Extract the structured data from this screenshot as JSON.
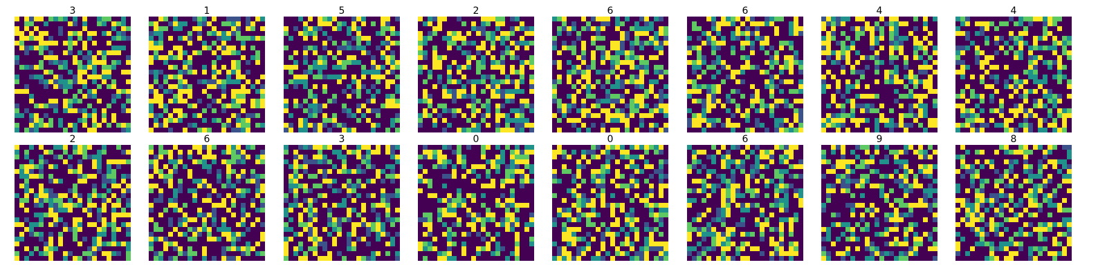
{
  "chart_data": {
    "type": "heatmap",
    "layout": {
      "rows": 2,
      "cols": 8
    },
    "image_shape": [
      24,
      24
    ],
    "colormap": "viridis",
    "value_range": [
      0,
      1
    ],
    "axes_visible": false,
    "panels": [
      {
        "title": "3"
      },
      {
        "title": "1"
      },
      {
        "title": "5"
      },
      {
        "title": "2"
      },
      {
        "title": "6"
      },
      {
        "title": "6"
      },
      {
        "title": "4"
      },
      {
        "title": "4"
      },
      {
        "title": "2"
      },
      {
        "title": "6"
      },
      {
        "title": "3"
      },
      {
        "title": "0"
      },
      {
        "title": "0"
      },
      {
        "title": "6"
      },
      {
        "title": "9"
      },
      {
        "title": "8"
      }
    ]
  }
}
